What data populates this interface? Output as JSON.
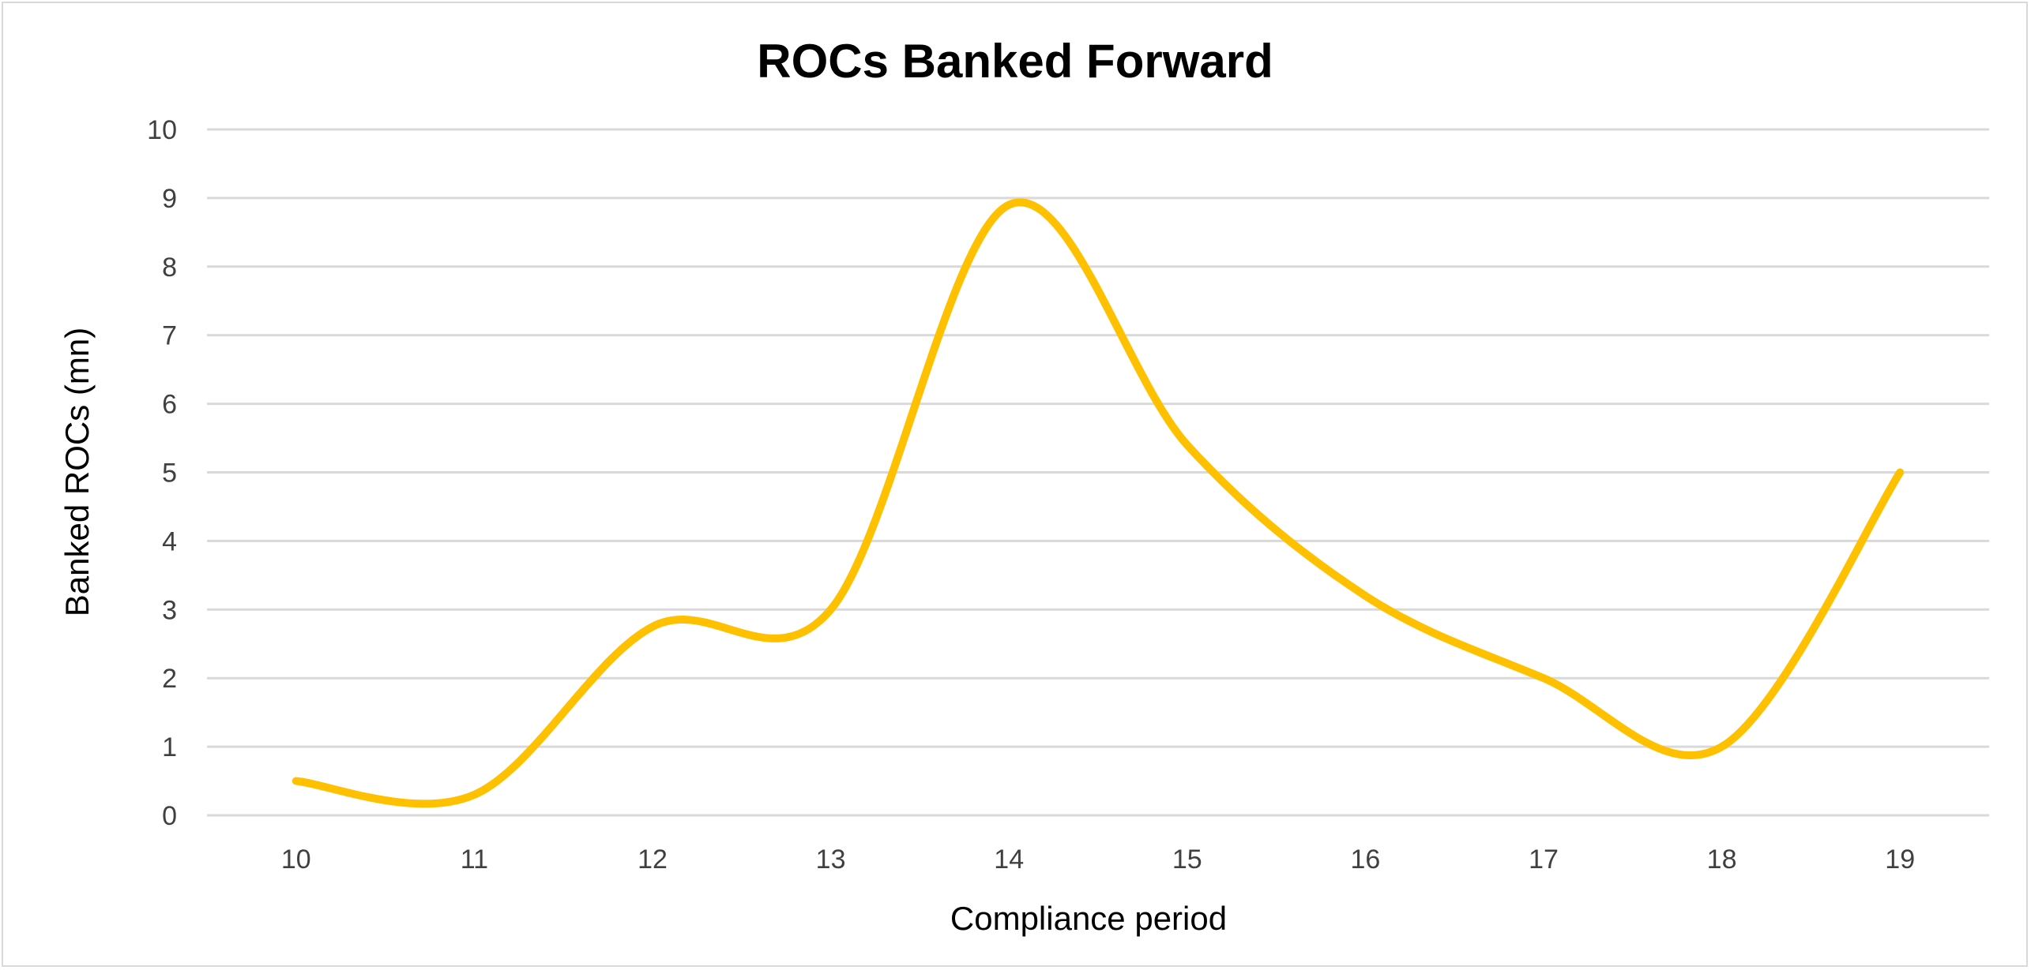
{
  "chart_data": {
    "type": "line",
    "title": "ROCs Banked Forward",
    "xlabel": "Compliance period",
    "ylabel": "Banked ROCs (mn)",
    "categories": [
      "10",
      "11",
      "12",
      "13",
      "14",
      "15",
      "16",
      "17",
      "18",
      "19"
    ],
    "series": [
      {
        "name": "Banked ROCs",
        "values": [
          0.5,
          0.3,
          2.75,
          3.0,
          8.9,
          5.4,
          3.2,
          2.0,
          1.0,
          5.0
        ],
        "color": "#FFC000",
        "smooth": true
      }
    ],
    "ylim": [
      0,
      10
    ],
    "yticks": [
      "0",
      "1",
      "2",
      "3",
      "4",
      "5",
      "6",
      "7",
      "8",
      "9",
      "10"
    ],
    "grid": true,
    "legend": "none"
  }
}
